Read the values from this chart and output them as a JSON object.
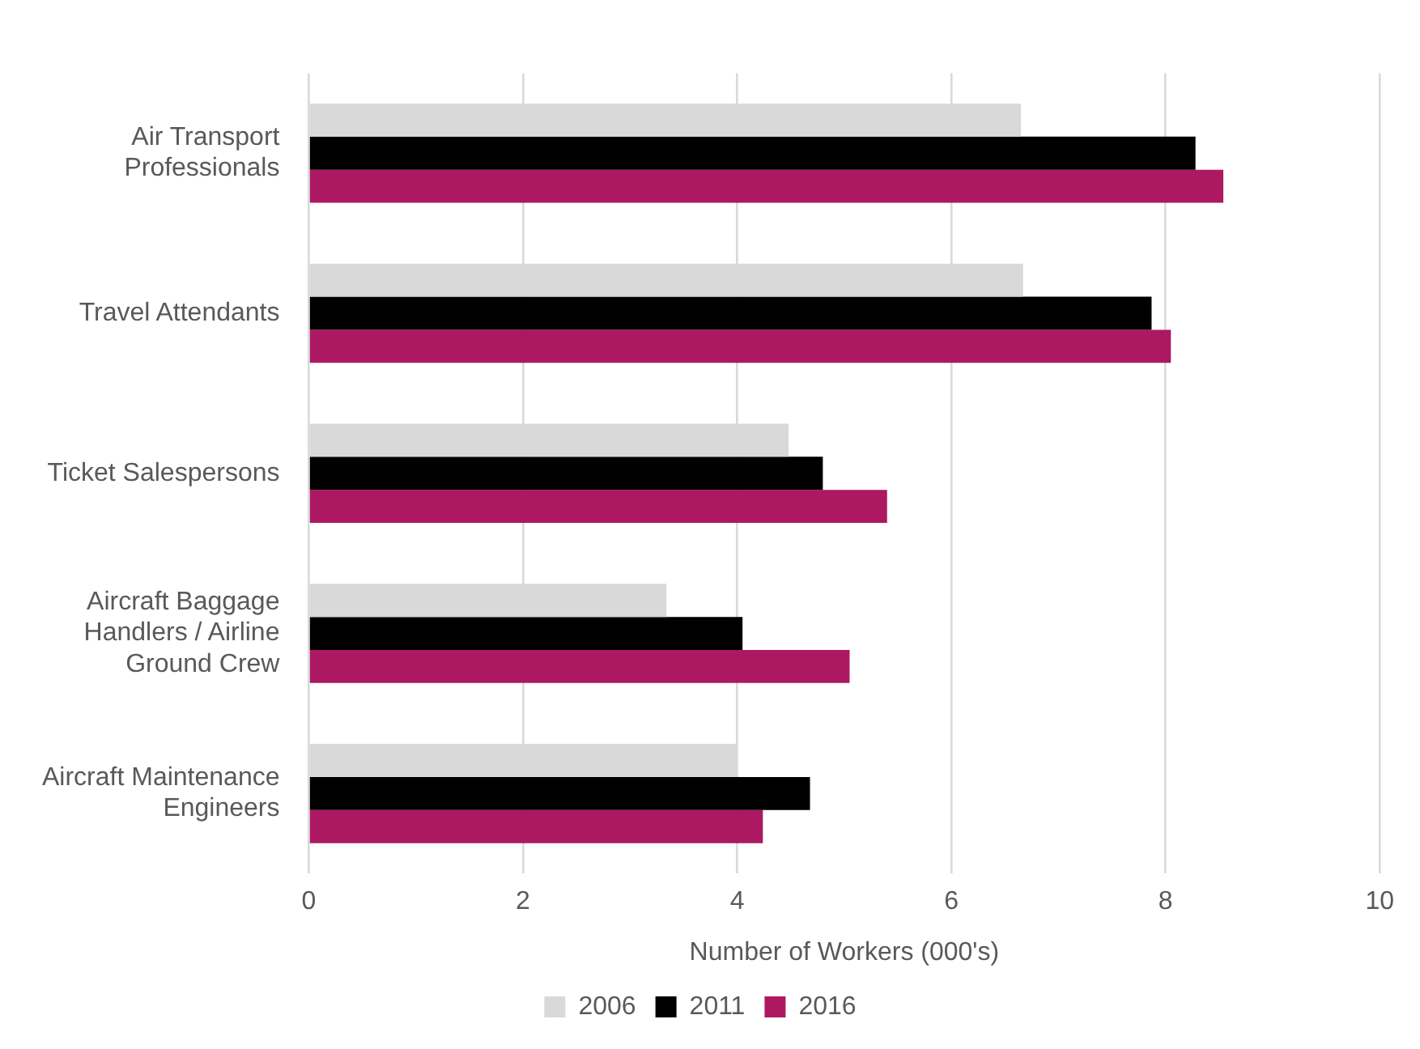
{
  "chart_data": {
    "type": "bar",
    "orientation": "horizontal",
    "categories": [
      "Air Transport\nProfessionals",
      "Travel Attendants",
      "Ticket Salespersons",
      "Aircraft Baggage\nHandlers / Airline\nGround Crew",
      "Aircraft Maintenance\nEngineers"
    ],
    "series": [
      {
        "name": "2006",
        "color": "#d9d9d9",
        "values": [
          6.65,
          6.67,
          4.48,
          3.34,
          4.0
        ]
      },
      {
        "name": "2011",
        "color": "#000000",
        "values": [
          8.28,
          7.87,
          4.8,
          4.05,
          4.68
        ]
      },
      {
        "name": "2016",
        "color": "#ad1862",
        "values": [
          8.54,
          8.05,
          5.4,
          5.05,
          4.24
        ]
      }
    ],
    "xlabel": "Number of Workers (000's)",
    "xlim": [
      0,
      10
    ],
    "xticks": [
      0,
      2,
      4,
      6,
      8,
      10
    ],
    "grid": "x",
    "legend": "bottom"
  }
}
